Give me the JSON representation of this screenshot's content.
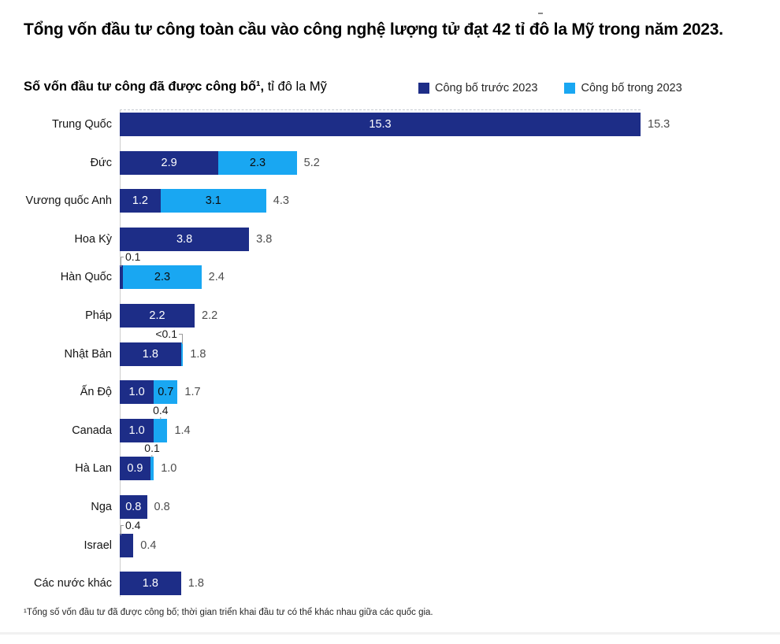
{
  "title": "Tổng vốn đầu tư công toàn cầu vào công nghệ lượng tử đạt 42 tỉ đô la Mỹ trong năm 2023.",
  "subtitle": {
    "bold": "Số vốn đầu tư công đã được công bố¹,",
    "regular": " tỉ đô la Mỹ"
  },
  "legend": [
    {
      "label": "Công bố trước 2023",
      "color": "#1d2d87"
    },
    {
      "label": "Công bố trong 2023",
      "color": "#19a7f2"
    }
  ],
  "footnote": "¹Tổng số vốn đầu tư đã được công bố; thời gian triển khai đầu tư có thể khác nhau giữa các quốc gia.",
  "colors": {
    "pre2023": "#1d2d87",
    "in2023": "#19a7f2",
    "axis": "#cccccc",
    "total_label": "#4d4d4d",
    "bar_text_on_dark": "#ffffff",
    "bar_text_on_light": "#0d0d0d"
  },
  "chart_data": {
    "type": "bar",
    "orientation": "horizontal",
    "stacked": true,
    "title": "Số vốn đầu tư công đã được công bố¹, tỉ đô la Mỹ",
    "unit": "tỉ đô la Mỹ",
    "x_max": 15.3,
    "legend_position": "top-right",
    "grid": false,
    "categories": [
      "Trung Quốc",
      "Đức",
      "Vương quốc Anh",
      "Hoa Kỳ",
      "Hàn Quốc",
      "Pháp",
      "Nhật Bản",
      "Ấn Độ",
      "Canada",
      "Hà Lan",
      "Nga",
      "Israel",
      "Các nước khác"
    ],
    "series": [
      {
        "name": "Công bố trước 2023",
        "values": [
          15.3,
          2.9,
          1.2,
          3.8,
          0.1,
          2.2,
          1.8,
          1.0,
          1.0,
          0.9,
          0.8,
          0.4,
          1.8
        ]
      },
      {
        "name": "Công bố trong 2023",
        "values": [
          0,
          2.3,
          3.1,
          0,
          2.3,
          0,
          0.06,
          0.7,
          0.4,
          0.1,
          0,
          0,
          0
        ]
      }
    ],
    "totals": [
      15.3,
      5.2,
      4.3,
      3.8,
      2.4,
      2.2,
      1.8,
      1.7,
      1.4,
      1.0,
      0.8,
      0.4,
      1.8
    ],
    "rows": [
      {
        "category": "Trung Quốc",
        "pre": 15.3,
        "in": 0,
        "pre_label": "15.3",
        "in_label": null,
        "total_label": "15.3",
        "callout": null
      },
      {
        "category": "Đức",
        "pre": 2.9,
        "in": 2.3,
        "pre_label": "2.9",
        "in_label": "2.3",
        "total_label": "5.2",
        "callout": null
      },
      {
        "category": "Vương quốc Anh",
        "pre": 1.2,
        "in": 3.1,
        "pre_label": "1.2",
        "in_label": "3.1",
        "total_label": "4.3",
        "callout": null
      },
      {
        "category": "Hoa Kỳ",
        "pre": 3.8,
        "in": 0,
        "pre_label": "3.8",
        "in_label": null,
        "total_label": "3.8",
        "callout": null
      },
      {
        "category": "Hàn Quốc",
        "pre": 0.1,
        "in": 2.3,
        "pre_label": null,
        "in_label": "2.3",
        "total_label": "2.4",
        "callout": {
          "text": "0.1",
          "connector": "left"
        }
      },
      {
        "category": "Pháp",
        "pre": 2.2,
        "in": 0,
        "pre_label": "2.2",
        "in_label": null,
        "total_label": "2.2",
        "callout": null
      },
      {
        "category": "Nhật Bản",
        "pre": 1.8,
        "in": 0.06,
        "pre_label": "1.8",
        "in_label": null,
        "total_label": "1.8",
        "callout": {
          "text": "<0.1",
          "connector": "right"
        }
      },
      {
        "category": "Ấn Độ",
        "pre": 1.0,
        "in": 0.7,
        "pre_label": "1.0",
        "in_label": "0.7",
        "total_label": "1.7",
        "callout": null
      },
      {
        "category": "Canada",
        "pre": 1.0,
        "in": 0.4,
        "pre_label": "1.0",
        "in_label": null,
        "total_label": "1.4",
        "callout": {
          "text": "0.4",
          "connector": "tick"
        }
      },
      {
        "category": "Hà Lan",
        "pre": 0.9,
        "in": 0.1,
        "pre_label": "0.9",
        "in_label": null,
        "total_label": "1.0",
        "callout": {
          "text": "0.1",
          "connector": "tick"
        }
      },
      {
        "category": "Nga",
        "pre": 0.8,
        "in": 0,
        "pre_label": "0.8",
        "in_label": null,
        "total_label": "0.8",
        "callout": null
      },
      {
        "category": "Israel",
        "pre": 0.4,
        "in": 0,
        "pre_label": null,
        "in_label": null,
        "total_label": "0.4",
        "callout": {
          "text": "0.4",
          "connector": "left"
        }
      },
      {
        "category": "Các nước khác",
        "pre": 1.8,
        "in": 0,
        "pre_label": "1.8",
        "in_label": null,
        "total_label": "1.8",
        "callout": null
      }
    ]
  }
}
